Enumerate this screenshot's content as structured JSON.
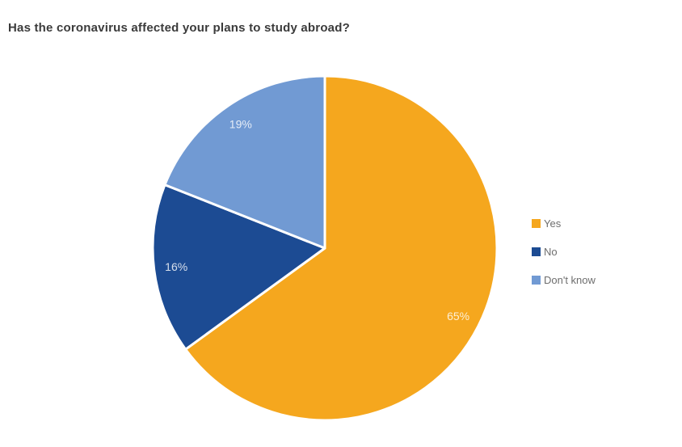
{
  "title": "Has the coronavirus affected your plans to study abroad?",
  "chart_data": {
    "type": "pie",
    "title": "Has the coronavirus affected your plans to study abroad?",
    "categories": [
      "Yes",
      "No",
      "Don't know"
    ],
    "values": [
      65,
      16,
      19
    ],
    "labels": [
      "65%",
      "16%",
      "19%"
    ],
    "colors": [
      "#F5A71E",
      "#1C4B93",
      "#719AD3"
    ],
    "start_angle_deg": 0,
    "direction": "clockwise",
    "slice_border_color": "#FFFFFF",
    "slice_border_width": 3,
    "label_color": "rgba(255,255,255,0.82)",
    "legend_position": "right",
    "background": "#FFFFFF"
  },
  "legend": {
    "items": [
      {
        "label": "Yes",
        "color": "#F5A71E"
      },
      {
        "label": "No",
        "color": "#1C4B93"
      },
      {
        "label": "Don't know",
        "color": "#719AD3"
      }
    ]
  }
}
